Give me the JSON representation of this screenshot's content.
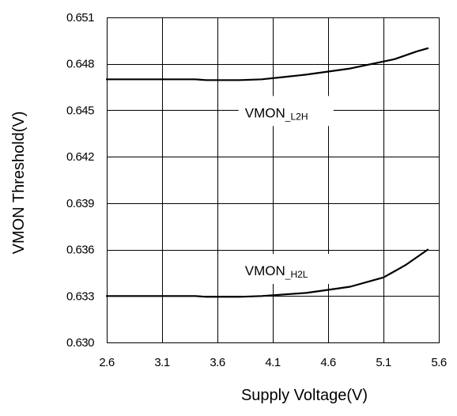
{
  "chart_data": {
    "type": "line",
    "title": "",
    "xlabel": "Supply Voltage(V)",
    "ylabel": "VMON Threshold(V)",
    "xlim": [
      2.6,
      5.6
    ],
    "ylim": [
      0.63,
      0.651
    ],
    "grid": true,
    "legend": "none",
    "x_ticks": [
      2.6,
      3.1,
      3.6,
      4.1,
      4.6,
      5.1,
      5.6
    ],
    "x_tick_labels": [
      "2.6",
      "3.1",
      "3.6",
      "4.1",
      "4.6",
      "5.1",
      "5.6"
    ],
    "y_ticks": [
      0.63,
      0.633,
      0.636,
      0.639,
      0.642,
      0.645,
      0.648,
      0.651
    ],
    "y_tick_labels": [
      "0.630",
      "0.633",
      "0.636",
      "0.639",
      "0.642",
      "0.645",
      "0.648",
      "0.651"
    ],
    "series": [
      {
        "name": "VMON_L2H",
        "x": [
          2.6,
          3.0,
          3.4,
          3.5,
          3.8,
          4.0,
          4.2,
          4.4,
          4.6,
          4.8,
          5.0,
          5.2,
          5.4,
          5.5
        ],
        "y": [
          0.647,
          0.647,
          0.647,
          0.64695,
          0.64695,
          0.647,
          0.64715,
          0.6473,
          0.6475,
          0.6477,
          0.648,
          0.6483,
          0.6488,
          0.649
        ]
      },
      {
        "name": "VMON_H2L",
        "x": [
          2.6,
          3.0,
          3.4,
          3.5,
          3.8,
          4.0,
          4.2,
          4.4,
          4.6,
          4.8,
          5.0,
          5.1,
          5.2,
          5.3,
          5.4,
          5.5
        ],
        "y": [
          0.633,
          0.633,
          0.633,
          0.63295,
          0.63295,
          0.633,
          0.6331,
          0.6332,
          0.6334,
          0.6336,
          0.634,
          0.6342,
          0.6346,
          0.635,
          0.6355,
          0.636
        ]
      }
    ],
    "annotations": [
      {
        "main": "VMON",
        "sub": "_L2H",
        "x": 4.22,
        "y": 0.6448
      },
      {
        "main": "VMON",
        "sub": "_H2L",
        "x": 4.22,
        "y": 0.6346
      }
    ]
  },
  "colors": {
    "line": "#000000",
    "grid": "#000000",
    "background": "#ffffff"
  }
}
